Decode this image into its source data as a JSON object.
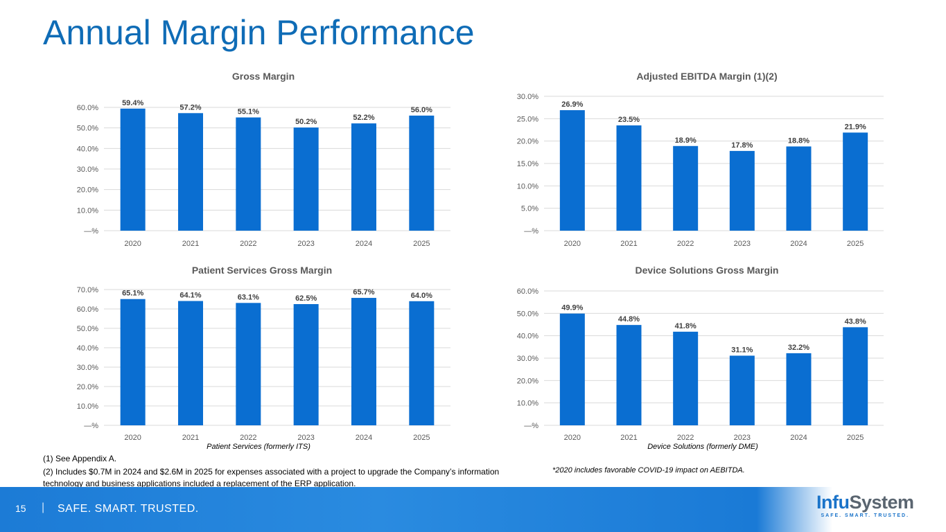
{
  "title": "Annual Margin Performance",
  "chart_data": [
    {
      "type": "bar",
      "title": "Gross Margin",
      "categories": [
        "2020",
        "2021",
        "2022",
        "2023",
        "2024",
        "2025"
      ],
      "values": [
        59.4,
        57.2,
        55.1,
        50.2,
        52.2,
        56.0
      ],
      "labels": [
        "59.4%",
        "57.2%",
        "55.1%",
        "50.2%",
        "52.2%",
        "56.0%"
      ],
      "yticks": [
        "—%",
        "10.0%",
        "20.0%",
        "30.0%",
        "40.0%",
        "50.0%",
        "60.0%"
      ],
      "ylim": [
        0,
        60
      ],
      "ystep": 10,
      "caption": "",
      "grid": true,
      "color": "#0a6ed1"
    },
    {
      "type": "bar",
      "title": "Adjusted EBITDA Margin (1)(2)",
      "categories": [
        "2020",
        "2021",
        "2022",
        "2023",
        "2024",
        "2025"
      ],
      "values": [
        26.9,
        23.5,
        18.9,
        17.8,
        18.8,
        21.9
      ],
      "labels": [
        "26.9%",
        "23.5%",
        "18.9%",
        "17.8%",
        "18.8%",
        "21.9%"
      ],
      "yticks": [
        "—%",
        "5.0%",
        "10.0%",
        "15.0%",
        "20.0%",
        "25.0%",
        "30.0%"
      ],
      "ylim": [
        0,
        30
      ],
      "ystep": 5,
      "caption": "",
      "grid": true,
      "color": "#0a6ed1"
    },
    {
      "type": "bar",
      "title": "Patient Services Gross Margin",
      "categories": [
        "2020",
        "2021",
        "2022",
        "2023",
        "2024",
        "2025"
      ],
      "values": [
        65.1,
        64.1,
        63.1,
        62.5,
        65.7,
        64.0
      ],
      "labels": [
        "65.1%",
        "64.1%",
        "63.1%",
        "62.5%",
        "65.7%",
        "64.0%"
      ],
      "yticks": [
        "—%",
        "10.0%",
        "20.0%",
        "30.0%",
        "40.0%",
        "50.0%",
        "60.0%",
        "70.0%"
      ],
      "ylim": [
        0,
        70
      ],
      "ystep": 10,
      "caption": "Patient Services (formerly ITS)",
      "grid": true,
      "color": "#0a6ed1"
    },
    {
      "type": "bar",
      "title": "Device Solutions Gross Margin",
      "categories": [
        "2020",
        "2021",
        "2022",
        "2023",
        "2024",
        "2025"
      ],
      "values": [
        49.9,
        44.8,
        41.8,
        31.1,
        32.2,
        43.8
      ],
      "labels": [
        "49.9%",
        "44.8%",
        "41.8%",
        "31.1%",
        "32.2%",
        "43.8%"
      ],
      "yticks": [
        "—%",
        "10.0%",
        "20.0%",
        "30.0%",
        "40.0%",
        "50.0%",
        "60.0%"
      ],
      "ylim": [
        0,
        60
      ],
      "ystep": 10,
      "caption": "Device Solutions (formerly DME)",
      "grid": true,
      "color": "#0a6ed1"
    }
  ],
  "notes": {
    "n1": "(1) See Appendix A.",
    "n2": "(2) Includes $0.7M in 2024 and $2.6M in 2025 for expenses associated with a project to upgrade the Company’s information technology and business applications included a replacement of the ERP application.",
    "covid": "*2020 includes favorable COVID-19 impact on AEBITDA."
  },
  "footer": {
    "page": "15",
    "separator": "|",
    "tagline": "SAFE. SMART. TRUSTED.",
    "logo_name": "InfuSystem",
    "logo_tag": "SAFE. SMART. TRUSTED."
  }
}
